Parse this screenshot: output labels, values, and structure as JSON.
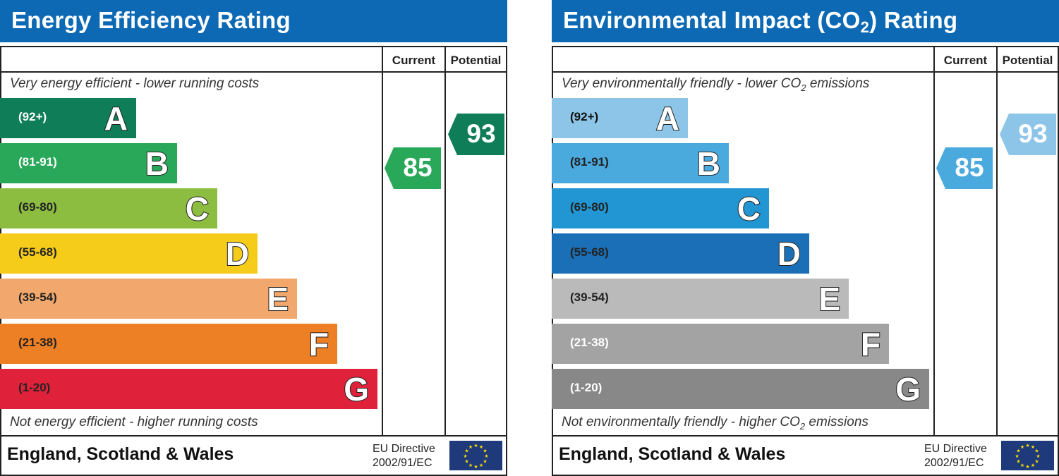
{
  "chart_data": [
    {
      "type": "bar",
      "title": "Energy Efficiency Rating",
      "columns": [
        "Current",
        "Potential"
      ],
      "top_note": "Very energy efficient - lower running costs",
      "bottom_note": "Not energy efficient - higher running costs",
      "bands": [
        {
          "letter": "A",
          "range": "(92+)",
          "color": "#0f7d58",
          "text": "#ffffff"
        },
        {
          "letter": "B",
          "range": "(81-91)",
          "color": "#2aa85a",
          "text": "#ffffff"
        },
        {
          "letter": "C",
          "range": "(69-80)",
          "color": "#8cbd41",
          "text": "#222222"
        },
        {
          "letter": "D",
          "range": "(55-68)",
          "color": "#f6cc1a",
          "text": "#222222"
        },
        {
          "letter": "E",
          "range": "(39-54)",
          "color": "#f2a86c",
          "text": "#222222"
        },
        {
          "letter": "F",
          "range": "(21-38)",
          "color": "#ed7f24",
          "text": "#222222"
        },
        {
          "letter": "G",
          "range": "(1-20)",
          "color": "#e0213a",
          "text": "#222222"
        }
      ],
      "current": {
        "value": 85,
        "band": "B",
        "color": "#2aa85a"
      },
      "potential": {
        "value": 93,
        "band": "A",
        "color": "#0f7d58"
      },
      "region": "England, Scotland & Wales",
      "eu_line1": "EU Directive",
      "eu_line2": "2002/91/EC"
    },
    {
      "type": "bar",
      "title": "Environmental Impact (CO",
      "title_sub": "2",
      "title_end": ") Rating",
      "columns": [
        "Current",
        "Potential"
      ],
      "top_note": "Very environmentally friendly - lower CO",
      "top_note_sub": "2",
      "top_note_end": " emissions",
      "bottom_note": "Not environmentally friendly - higher CO",
      "bottom_note_sub": "2",
      "bottom_note_end": " emissions",
      "bands": [
        {
          "letter": "A",
          "range": "(92+)",
          "color": "#8dc5e8",
          "text": "#111111"
        },
        {
          "letter": "B",
          "range": "(81-91)",
          "color": "#4aa9dd",
          "text": "#222222"
        },
        {
          "letter": "C",
          "range": "(69-80)",
          "color": "#2196d2",
          "text": "#222222"
        },
        {
          "letter": "D",
          "range": "(55-68)",
          "color": "#1a6fb6",
          "text": "#222222"
        },
        {
          "letter": "E",
          "range": "(39-54)",
          "color": "#bababa",
          "text": "#222222"
        },
        {
          "letter": "F",
          "range": "(21-38)",
          "color": "#a3a3a3",
          "text": "#ffffff"
        },
        {
          "letter": "G",
          "range": "(1-20)",
          "color": "#888888",
          "text": "#ffffff"
        }
      ],
      "current": {
        "value": 85,
        "band": "B",
        "color": "#4aa9dd"
      },
      "potential": {
        "value": 93,
        "band": "A",
        "color": "#8dc5e8"
      },
      "region": "England, Scotland & Wales",
      "eu_line1": "EU Directive",
      "eu_line2": "2002/91/EC"
    }
  ]
}
